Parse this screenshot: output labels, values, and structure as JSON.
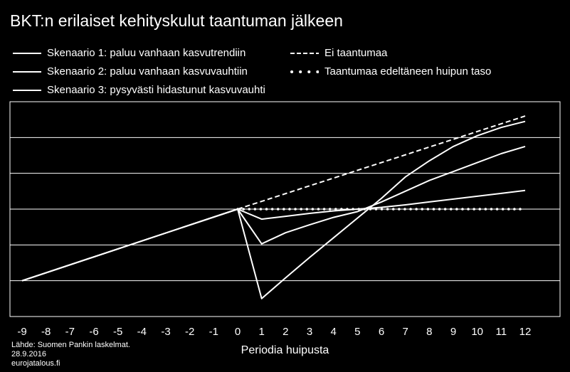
{
  "chart_data": {
    "type": "line",
    "title": "BKT:n erilaiset kehityskulut taantuman jälkeen",
    "xlabel": "Periodia huipusta",
    "ylabel": "",
    "x": [
      -9,
      -8,
      -7,
      -6,
      -5,
      -4,
      -3,
      -2,
      -1,
      0,
      1,
      2,
      3,
      4,
      5,
      6,
      7,
      8,
      9,
      10,
      11,
      12
    ],
    "xlim": [
      -9,
      12
    ],
    "ylim": [
      0,
      6
    ],
    "y_ticks_labeled": false,
    "grid": "horizontal",
    "legend_position": "top",
    "series": [
      {
        "name": "Skenaario 1: paluu vanhaan kasvutrendiin",
        "style": "solid",
        "points": [
          [
            -9,
            1.0
          ],
          [
            0,
            3.0
          ],
          [
            1,
            0.5
          ],
          [
            2,
            1.08
          ],
          [
            3,
            1.65
          ],
          [
            4,
            2.2
          ],
          [
            5,
            2.75
          ],
          [
            6,
            3.3
          ],
          [
            7,
            3.9
          ],
          [
            8,
            4.35
          ],
          [
            9,
            4.75
          ],
          [
            10,
            5.05
          ],
          [
            11,
            5.28
          ],
          [
            12,
            5.45
          ]
        ]
      },
      {
        "name": "Skenaario 2: paluu vanhaan kasvuvauhtiin",
        "style": "solid",
        "points": [
          [
            -9,
            1.0
          ],
          [
            0,
            3.0
          ],
          [
            1,
            2.03
          ],
          [
            2,
            2.34
          ],
          [
            3,
            2.56
          ],
          [
            4,
            2.77
          ],
          [
            5,
            2.93
          ],
          [
            6,
            3.2
          ],
          [
            7,
            3.5
          ],
          [
            8,
            3.8
          ],
          [
            9,
            4.05
          ],
          [
            10,
            4.3
          ],
          [
            11,
            4.55
          ],
          [
            12,
            4.75
          ]
        ]
      },
      {
        "name": "Skenaario 3: pysyvästi hidastunut kasvuvauhti",
        "style": "solid",
        "points": [
          [
            -9,
            1.0
          ],
          [
            0,
            3.0
          ],
          [
            1,
            2.72
          ],
          [
            2,
            2.8
          ],
          [
            3,
            2.88
          ],
          [
            4,
            2.95
          ],
          [
            5,
            3.0
          ],
          [
            6,
            3.05
          ],
          [
            7,
            3.12
          ],
          [
            8,
            3.2
          ],
          [
            9,
            3.28
          ],
          [
            10,
            3.36
          ],
          [
            11,
            3.44
          ],
          [
            12,
            3.52
          ]
        ]
      },
      {
        "name": "Ei taantumaa",
        "style": "dashed",
        "points": [
          [
            0,
            3.0
          ],
          [
            12,
            5.6
          ]
        ]
      },
      {
        "name": "Taantumaa edeltäneen huipun taso",
        "style": "dotted",
        "points": [
          [
            0,
            3.0
          ],
          [
            12,
            3.0
          ]
        ]
      }
    ]
  },
  "footer": {
    "source": "Lähde: Suomen Pankin laskelmat.",
    "date": "28.9.2016",
    "site": "eurojatalous.fi"
  }
}
